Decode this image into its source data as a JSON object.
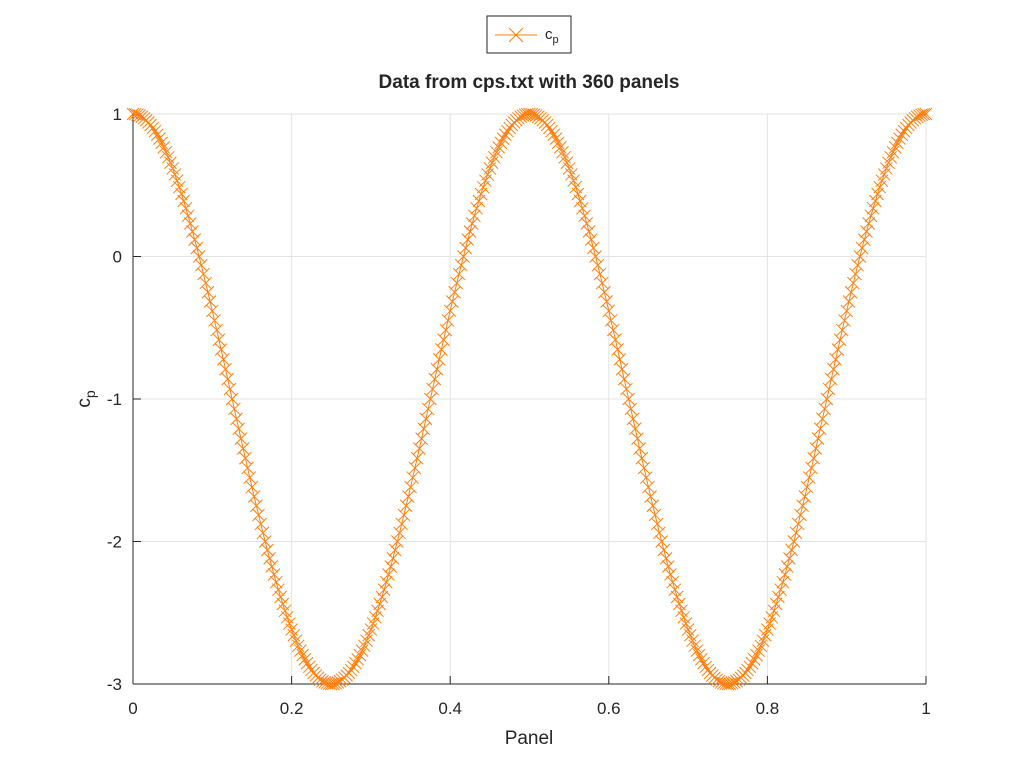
{
  "chart_data": {
    "type": "line",
    "title": "Data from cps.txt with 360 panels",
    "xlabel": "Panel",
    "ylabel": {
      "base": "c",
      "sub": "p"
    },
    "xlim": [
      0,
      1
    ],
    "ylim": [
      -3,
      1
    ],
    "xticks": [
      0,
      0.2,
      0.4,
      0.6,
      0.8,
      1
    ],
    "xtick_labels": [
      "0",
      "0.2",
      "0.4",
      "0.6",
      "0.8",
      "1"
    ],
    "yticks": [
      -3,
      -2,
      -1,
      0,
      1
    ],
    "ytick_labels": [
      "-3",
      "-2",
      "-1",
      "0",
      "1"
    ],
    "grid": true,
    "legend_position": "top-center (outside, above title)",
    "series": [
      {
        "name": "c_p",
        "legend_label": {
          "base": "c",
          "sub": "p"
        },
        "color": "#ff7f0e",
        "marker": "x",
        "n_points": 361,
        "formula": "c_p = 1 - 4*sin(2*pi*x)^2, x = k/360",
        "x_range": [
          0,
          1
        ]
      }
    ]
  }
}
